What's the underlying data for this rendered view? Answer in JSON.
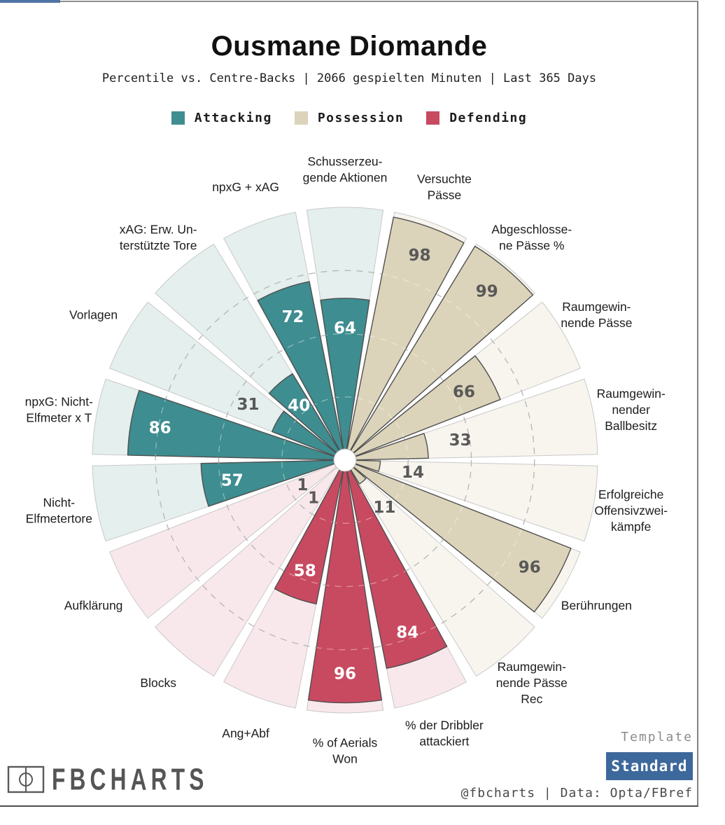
{
  "header": {
    "title": "Ousmane Diomande",
    "subtitle": "Percentile vs. Centre-Backs | 2066 gespielten Minuten | Last 365 Days"
  },
  "legend": {
    "items": [
      {
        "label": "Attacking",
        "key": "attacking"
      },
      {
        "label": "Possession",
        "key": "possession"
      },
      {
        "label": "Defending",
        "key": "defending"
      }
    ]
  },
  "chart_data": {
    "type": "bar",
    "layout": "polar-pizza-percentile",
    "start_angle_deg": 0,
    "direction": "clockwise",
    "scale": {
      "min": 0,
      "max": 100
    },
    "gridlines": [
      25,
      50,
      75
    ],
    "grid_style": "dashed",
    "groups": {
      "attacking": {
        "fill": "#3e8d90",
        "bg": "#e4efee",
        "value_text": "#ffffff"
      },
      "possession": {
        "fill": "#dcd4ba",
        "bg": "#f7f5ee",
        "value_text": "#595959"
      },
      "defending": {
        "fill": "#c84a60",
        "bg": "#f9e8eb",
        "value_text": "#ffffff"
      }
    },
    "outside_value_color": "#595959",
    "slices": [
      {
        "label": "Schusserzeugende Aktionen",
        "lines": [
          "Schusserzeu-",
          "gende Aktionen"
        ],
        "value": 64,
        "group": "attacking"
      },
      {
        "label": "Versuchte Pässe",
        "lines": [
          "Versuchte",
          "Pässe"
        ],
        "value": 98,
        "group": "possession"
      },
      {
        "label": "Abgeschlossene Pässe %",
        "lines": [
          "Abgeschlosse-",
          "ne Pässe %"
        ],
        "value": 99,
        "group": "possession"
      },
      {
        "label": "Raumgewinnende Pässe",
        "lines": [
          "Raumgewin-",
          "nende Pässe"
        ],
        "value": 66,
        "group": "possession"
      },
      {
        "label": "Raumgewinnender Ballbesitz",
        "lines": [
          "Raumgewin-",
          "nender",
          "Ballbesitz"
        ],
        "value": 33,
        "group": "possession"
      },
      {
        "label": "Erfolgreiche Offensivzweikämpfe",
        "lines": [
          "Erfolgreiche",
          "Offensivzwei-",
          "kämpfe"
        ],
        "value": 14,
        "group": "possession"
      },
      {
        "label": "Berührungen",
        "lines": [
          "Berührungen"
        ],
        "value": 96,
        "group": "possession"
      },
      {
        "label": "Raumgewinnende Pässe Rec",
        "lines": [
          "Raumgewin-",
          "nende Pässe",
          "Rec"
        ],
        "value": 11,
        "group": "possession"
      },
      {
        "label": "% der Dribbler attackiert",
        "lines": [
          "% der Dribbler",
          "attackiert"
        ],
        "value": 84,
        "group": "defending"
      },
      {
        "label": "% of Aerials Won",
        "lines": [
          "% of Aerials",
          "Won"
        ],
        "value": 96,
        "group": "defending"
      },
      {
        "label": "Ang+Abf",
        "lines": [
          "Ang+Abf"
        ],
        "value": 58,
        "group": "defending"
      },
      {
        "label": "Blocks",
        "lines": [
          "Blocks"
        ],
        "value": 1,
        "group": "defending"
      },
      {
        "label": "Aufklärung",
        "lines": [
          "Aufklärung"
        ],
        "value": 1,
        "group": "defending"
      },
      {
        "label": "Nicht-Elfmetertore",
        "lines": [
          "Nicht-",
          "Elfmetertore"
        ],
        "value": 57,
        "group": "attacking"
      },
      {
        "label": "npxG: Nicht-Elfmeter x T",
        "lines": [
          "npxG: Nicht-",
          "Elfmeter x T"
        ],
        "value": 86,
        "group": "attacking"
      },
      {
        "label": "Vorlagen",
        "lines": [
          "Vorlagen"
        ],
        "value": 31,
        "group": "attacking"
      },
      {
        "label": "xAG: Erw. Unterstützte Tore",
        "lines": [
          "xAG: Erw. Un-",
          "terstützte Tore"
        ],
        "value": 40,
        "group": "attacking"
      },
      {
        "label": "npxG + xAG",
        "lines": [
          "npxG + xAG"
        ],
        "value": 72,
        "group": "attacking"
      }
    ]
  },
  "footer": {
    "brand": "FBCHARTS",
    "template_label": "Template",
    "template_value": "Standard",
    "credit": "@fbcharts | Data: Opta/FBref"
  }
}
